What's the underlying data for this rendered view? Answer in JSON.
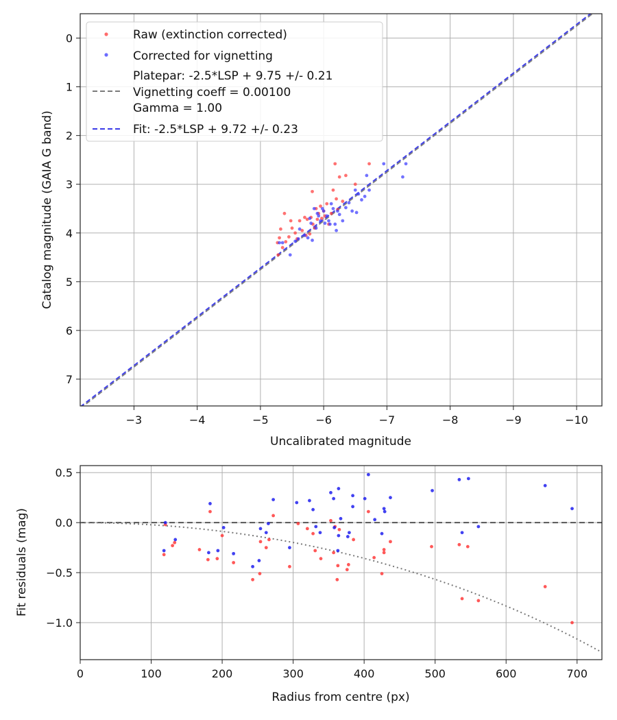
{
  "chart_data": [
    {
      "type": "scatter",
      "xlabel": "Uncalibrated magnitude",
      "ylabel": "Catalog magnitude (GAIA G band)",
      "xlim": [
        -2.15,
        -10.4
      ],
      "ylim": [
        7.55,
        -0.5
      ],
      "x_ticks": [
        -3,
        -4,
        -5,
        -6,
        -7,
        -8,
        -9,
        -10
      ],
      "x_tick_labels": [
        "−3",
        "−4",
        "−5",
        "−6",
        "−7",
        "−8",
        "−9",
        "−10"
      ],
      "y_ticks": [
        0,
        1,
        2,
        3,
        4,
        5,
        6,
        7
      ],
      "y_tick_labels": [
        "0",
        "1",
        "2",
        "3",
        "4",
        "5",
        "6",
        "7"
      ],
      "grid": true,
      "legend_position": "top-left",
      "legend": [
        {
          "label": "Raw (extinction corrected)",
          "kind": "marker",
          "color": "#ff2a2a"
        },
        {
          "label": "Corrected for vignetting",
          "kind": "marker",
          "color": "#2a2aff"
        },
        {
          "label": "Platepar: -2.5*LSP + 9.75 +/- 0.21",
          "kind": "text"
        },
        {
          "label": "Vignetting coeff = 0.00100",
          "kind": "dashed",
          "color": "#7a7a7a"
        },
        {
          "label": "Gamma = 1.00",
          "kind": "text"
        },
        {
          "label": "Fit: -2.5*LSP + 9.72 +/- 0.23",
          "kind": "dashed",
          "color": "#3a3ae8"
        }
      ],
      "lines": [
        {
          "name": "Platepar",
          "slope": -2.5,
          "intercept": 9.75,
          "color": "#7a7a7a"
        },
        {
          "name": "Fit",
          "slope": -2.5,
          "intercept": 9.72,
          "color": "#3a3ae8"
        }
      ],
      "series": [
        {
          "name": "Raw (extinction corrected)",
          "color": "#ff3b3b",
          "points": [
            [
              -5.27,
              4.2
            ],
            [
              -5.3,
              4.1
            ],
            [
              -5.35,
              4.3
            ],
            [
              -5.28,
              4.45
            ],
            [
              -5.32,
              3.92
            ],
            [
              -5.4,
              4.18
            ],
            [
              -5.45,
              4.08
            ],
            [
              -5.38,
              3.6
            ],
            [
              -5.5,
              3.9
            ],
            [
              -5.48,
              3.75
            ],
            [
              -5.55,
              4.0
            ],
            [
              -5.58,
              4.12
            ],
            [
              -5.62,
              3.75
            ],
            [
              -5.66,
              3.95
            ],
            [
              -5.7,
              3.68
            ],
            [
              -5.72,
              4.05
            ],
            [
              -5.74,
              3.72
            ],
            [
              -5.78,
              4.02
            ],
            [
              -5.8,
              3.68
            ],
            [
              -5.82,
              3.15
            ],
            [
              -5.83,
              3.82
            ],
            [
              -5.86,
              3.9
            ],
            [
              -5.88,
              3.5
            ],
            [
              -5.9,
              3.72
            ],
            [
              -5.92,
              3.6
            ],
            [
              -5.95,
              3.45
            ],
            [
              -5.97,
              3.7
            ],
            [
              -6.0,
              3.55
            ],
            [
              -6.02,
              3.65
            ],
            [
              -6.05,
              3.4
            ],
            [
              -6.08,
              3.82
            ],
            [
              -6.12,
              3.6
            ],
            [
              -6.15,
              3.12
            ],
            [
              -6.18,
              2.58
            ],
            [
              -6.2,
              3.3
            ],
            [
              -6.22,
              3.52
            ],
            [
              -6.25,
              2.85
            ],
            [
              -6.3,
              3.35
            ],
            [
              -6.35,
              2.82
            ],
            [
              -6.5,
              3.0
            ],
            [
              -6.72,
              2.58
            ]
          ]
        },
        {
          "name": "Corrected for vignetting",
          "color": "#3b3bff",
          "points": [
            [
              -5.3,
              4.2
            ],
            [
              -5.35,
              4.2
            ],
            [
              -5.47,
              4.45
            ],
            [
              -5.55,
              4.17
            ],
            [
              -5.6,
              4.12
            ],
            [
              -5.62,
              3.92
            ],
            [
              -5.7,
              4.05
            ],
            [
              -5.75,
              4.1
            ],
            [
              -5.78,
              3.7
            ],
            [
              -5.8,
              3.8
            ],
            [
              -5.82,
              4.15
            ],
            [
              -5.85,
              3.5
            ],
            [
              -5.88,
              3.9
            ],
            [
              -5.9,
              3.6
            ],
            [
              -5.92,
              3.65
            ],
            [
              -5.95,
              3.75
            ],
            [
              -5.98,
              3.5
            ],
            [
              -6.0,
              3.55
            ],
            [
              -6.02,
              3.8
            ],
            [
              -6.05,
              3.65
            ],
            [
              -6.08,
              3.75
            ],
            [
              -6.1,
              3.82
            ],
            [
              -6.12,
              3.4
            ],
            [
              -6.15,
              3.5
            ],
            [
              -6.18,
              3.82
            ],
            [
              -6.2,
              3.95
            ],
            [
              -6.22,
              3.55
            ],
            [
              -6.25,
              3.62
            ],
            [
              -6.3,
              3.75
            ],
            [
              -6.35,
              3.48
            ],
            [
              -6.4,
              3.38
            ],
            [
              -6.45,
              3.55
            ],
            [
              -6.5,
              3.12
            ],
            [
              -6.52,
              3.58
            ],
            [
              -6.55,
              3.2
            ],
            [
              -6.6,
              3.32
            ],
            [
              -6.65,
              3.25
            ],
            [
              -6.68,
              2.82
            ],
            [
              -6.72,
              3.12
            ],
            [
              -6.95,
              2.58
            ],
            [
              -7.25,
              2.85
            ],
            [
              -7.3,
              2.58
            ]
          ]
        }
      ]
    },
    {
      "type": "scatter",
      "xlabel": "Radius from centre (px)",
      "ylabel": "Fit residuals (mag)",
      "xlim": [
        0,
        735
      ],
      "ylim": [
        -1.37,
        0.57
      ],
      "x_ticks": [
        0,
        100,
        200,
        300,
        400,
        500,
        600,
        700
      ],
      "x_tick_labels": [
        "0",
        "100",
        "200",
        "300",
        "400",
        "500",
        "600",
        "700"
      ],
      "y_ticks": [
        0.5,
        0.0,
        -0.5,
        -1.0
      ],
      "y_tick_labels": [
        "0.5",
        "0.0",
        "−0.5",
        "−1.0"
      ],
      "grid": true,
      "reference_line": {
        "y": 0,
        "color": "#555555"
      },
      "vignetting_curve": {
        "coeff": 0.001,
        "color": "#777777"
      },
      "series": [
        {
          "name": "Raw (extinction corrected)",
          "color": "#ff3b3b",
          "points": [
            [
              118,
              -0.32
            ],
            [
              120,
              -0.02
            ],
            [
              130,
              -0.23
            ],
            [
              133,
              -0.2
            ],
            [
              168,
              -0.27
            ],
            [
              180,
              -0.37
            ],
            [
              183,
              0.11
            ],
            [
              193,
              -0.36
            ],
            [
              200,
              -0.13
            ],
            [
              216,
              -0.4
            ],
            [
              243,
              -0.57
            ],
            [
              253,
              -0.51
            ],
            [
              254,
              -0.19
            ],
            [
              262,
              -0.25
            ],
            [
              266,
              -0.17
            ],
            [
              272,
              0.07
            ],
            [
              295,
              -0.44
            ],
            [
              307,
              -0.01
            ],
            [
              320,
              -0.06
            ],
            [
              328,
              -0.11
            ],
            [
              331,
              -0.28
            ],
            [
              339,
              -0.36
            ],
            [
              353,
              0.02
            ],
            [
              357,
              -0.3
            ],
            [
              359,
              -0.04
            ],
            [
              362,
              -0.57
            ],
            [
              363,
              -0.43
            ],
            [
              365,
              -0.07
            ],
            [
              376,
              -0.47
            ],
            [
              378,
              -0.42
            ],
            [
              385,
              -0.17
            ],
            [
              406,
              0.11
            ],
            [
              414,
              -0.35
            ],
            [
              425,
              -0.51
            ],
            [
              428,
              -0.3
            ],
            [
              428,
              -0.27
            ],
            [
              437,
              -0.19
            ],
            [
              495,
              -0.24
            ],
            [
              534,
              -0.22
            ],
            [
              538,
              -0.76
            ],
            [
              546,
              -0.24
            ],
            [
              561,
              -0.78
            ],
            [
              655,
              -0.64
            ],
            [
              693,
              -1.0
            ]
          ]
        },
        {
          "name": "Corrected for vignetting",
          "color": "#2020ee",
          "points": [
            [
              118,
              -0.28
            ],
            [
              120,
              0.0
            ],
            [
              134,
              -0.17
            ],
            [
              181,
              -0.3
            ],
            [
              183,
              0.19
            ],
            [
              194,
              -0.28
            ],
            [
              202,
              -0.05
            ],
            [
              216,
              -0.31
            ],
            [
              243,
              -0.44
            ],
            [
              252,
              -0.38
            ],
            [
              254,
              -0.06
            ],
            [
              262,
              -0.1
            ],
            [
              265,
              -0.01
            ],
            [
              272,
              0.23
            ],
            [
              295,
              -0.25
            ],
            [
              305,
              0.2
            ],
            [
              323,
              0.22
            ],
            [
              328,
              0.13
            ],
            [
              332,
              -0.04
            ],
            [
              338,
              -0.1
            ],
            [
              353,
              0.3
            ],
            [
              357,
              0.24
            ],
            [
              358,
              -0.05
            ],
            [
              363,
              -0.28
            ],
            [
              364,
              -0.13
            ],
            [
              364,
              0.34
            ],
            [
              367,
              0.04
            ],
            [
              377,
              -0.14
            ],
            [
              379,
              -0.1
            ],
            [
              384,
              0.27
            ],
            [
              384,
              0.16
            ],
            [
              401,
              0.24
            ],
            [
              406,
              0.48
            ],
            [
              415,
              0.03
            ],
            [
              425,
              -0.11
            ],
            [
              428,
              0.14
            ],
            [
              429,
              0.11
            ],
            [
              437,
              0.25
            ],
            [
              496,
              0.32
            ],
            [
              534,
              0.43
            ],
            [
              538,
              -0.1
            ],
            [
              547,
              0.44
            ],
            [
              561,
              -0.04
            ],
            [
              655,
              0.37
            ],
            [
              693,
              0.14
            ]
          ]
        }
      ]
    }
  ]
}
